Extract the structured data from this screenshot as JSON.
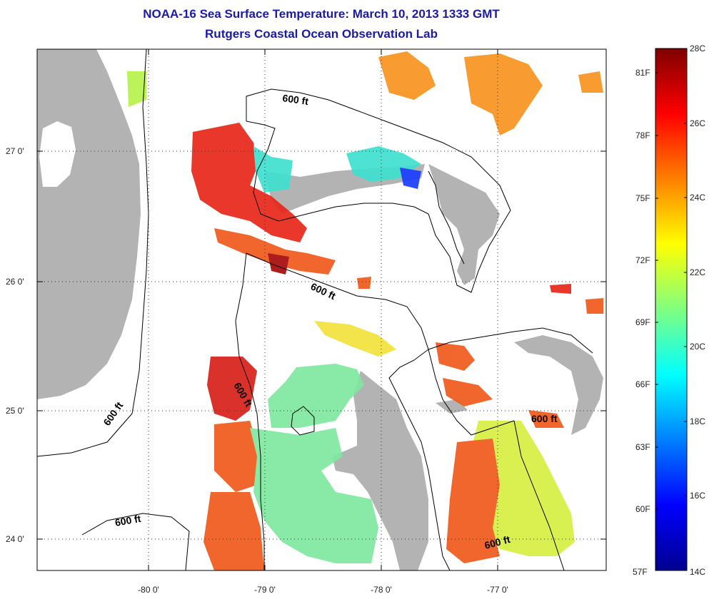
{
  "title_line1": "NOAA-16 Sea Surface Temperature:  March 10, 2013 1333 GMT",
  "title_line2": "Rutgers Coastal Ocean Observation Lab",
  "lat_labels": [
    "27 0'",
    "26 0'",
    "25 0'",
    "24 0'"
  ],
  "lon_labels": [
    "-80 0'",
    "-79 0'",
    "-78 0'",
    "-77 0'"
  ],
  "contour_labels": [
    "600 ft",
    "600 ft",
    "600 ft",
    "600 ft",
    "600 ft",
    "600 ft"
  ],
  "colorbar": {
    "celsius": [
      "28C",
      "26C",
      "24C",
      "22C",
      "20C",
      "18C",
      "16C",
      "14C"
    ],
    "fahrenheit": [
      "81F",
      "78F",
      "75F",
      "72F",
      "69F",
      "66F",
      "63F",
      "60F",
      "57F"
    ],
    "min_c": 14,
    "max_c": 28
  },
  "colors": {
    "land": "#b3b3b3",
    "title": "#1a1aa6"
  }
}
